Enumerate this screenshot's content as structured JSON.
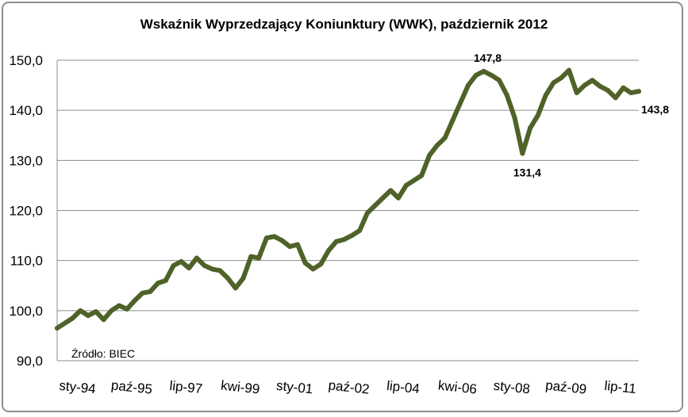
{
  "chart_data": {
    "type": "line",
    "title": "Wskaźnik Wyprzedzający Koniunktury (WWK), październik 2012",
    "xlabel": "",
    "ylabel": "",
    "ylim": [
      90,
      150
    ],
    "y_ticks": [
      "90,0",
      "100,0",
      "110,0",
      "120,0",
      "130,0",
      "140,0",
      "150,0"
    ],
    "x_start": "1994-01",
    "x_end": "2012-10",
    "x_tick_labels": [
      {
        "label": "sty-94",
        "date": "1994-01"
      },
      {
        "label": "paź-95",
        "date": "1995-10"
      },
      {
        "label": "lip-97",
        "date": "1997-07"
      },
      {
        "label": "kwi-99",
        "date": "1999-04"
      },
      {
        "label": "sty-01",
        "date": "2001-01"
      },
      {
        "label": "paź-02",
        "date": "2002-10"
      },
      {
        "label": "lip-04",
        "date": "2004-07"
      },
      {
        "label": "kwi-06",
        "date": "2006-04"
      },
      {
        "label": "sty-08",
        "date": "2008-01"
      },
      {
        "label": "paź-09",
        "date": "2009-10"
      },
      {
        "label": "lip-11",
        "date": "2011-07"
      }
    ],
    "gridlines": "horizontal",
    "legend": "none",
    "line_color": "#4f6228",
    "series": [
      {
        "points": [
          [
            "1994-01",
            96.5
          ],
          [
            "1994-04",
            97.5
          ],
          [
            "1994-07",
            98.5
          ],
          [
            "1994-10",
            100.0
          ],
          [
            "1995-01",
            99.0
          ],
          [
            "1995-04",
            99.8
          ],
          [
            "1995-07",
            98.2
          ],
          [
            "1995-10",
            100.0
          ],
          [
            "1996-01",
            101.0
          ],
          [
            "1996-04",
            100.3
          ],
          [
            "1996-07",
            102.0
          ],
          [
            "1996-10",
            103.5
          ],
          [
            "1997-01",
            103.8
          ],
          [
            "1997-04",
            105.5
          ],
          [
            "1997-07",
            106.0
          ],
          [
            "1997-10",
            109.0
          ],
          [
            "1998-01",
            109.8
          ],
          [
            "1998-04",
            108.5
          ],
          [
            "1998-07",
            110.5
          ],
          [
            "1998-10",
            109.0
          ],
          [
            "1999-01",
            108.3
          ],
          [
            "1999-04",
            108.0
          ],
          [
            "1999-07",
            106.5
          ],
          [
            "1999-10",
            104.5
          ],
          [
            "2000-01",
            106.5
          ],
          [
            "2000-04",
            110.8
          ],
          [
            "2000-07",
            110.5
          ],
          [
            "2000-10",
            114.5
          ],
          [
            "2001-01",
            114.8
          ],
          [
            "2001-04",
            114.0
          ],
          [
            "2001-07",
            112.8
          ],
          [
            "2001-10",
            113.2
          ],
          [
            "2002-01",
            109.5
          ],
          [
            "2002-04",
            108.3
          ],
          [
            "2002-07",
            109.3
          ],
          [
            "2002-10",
            112.0
          ],
          [
            "2003-01",
            113.8
          ],
          [
            "2003-04",
            114.2
          ],
          [
            "2003-07",
            115.0
          ],
          [
            "2003-10",
            116.0
          ],
          [
            "2004-01",
            119.5
          ],
          [
            "2004-04",
            121.0
          ],
          [
            "2004-07",
            122.5
          ],
          [
            "2004-10",
            124.0
          ],
          [
            "2005-01",
            122.5
          ],
          [
            "2005-04",
            125.0
          ],
          [
            "2005-07",
            126.0
          ],
          [
            "2005-10",
            127.0
          ],
          [
            "2006-01",
            131.0
          ],
          [
            "2006-04",
            133.0
          ],
          [
            "2006-07",
            134.5
          ],
          [
            "2006-10",
            138.0
          ],
          [
            "2007-01",
            141.5
          ],
          [
            "2007-04",
            145.0
          ],
          [
            "2007-07",
            147.0
          ],
          [
            "2007-10",
            147.8
          ],
          [
            "2008-01",
            147.0
          ],
          [
            "2008-04",
            146.0
          ],
          [
            "2008-07",
            143.0
          ],
          [
            "2008-10",
            138.5
          ],
          [
            "2009-01",
            131.4
          ],
          [
            "2009-04",
            136.5
          ],
          [
            "2009-07",
            139.0
          ],
          [
            "2009-10",
            143.0
          ],
          [
            "2010-01",
            145.5
          ],
          [
            "2010-04",
            146.5
          ],
          [
            "2010-07",
            148.0
          ],
          [
            "2010-10",
            143.5
          ],
          [
            "2011-01",
            145.0
          ],
          [
            "2011-04",
            146.0
          ],
          [
            "2011-07",
            144.8
          ],
          [
            "2011-10",
            144.0
          ],
          [
            "2012-01",
            142.5
          ],
          [
            "2012-04",
            144.5
          ],
          [
            "2012-07",
            143.5
          ],
          [
            "2012-10",
            143.8
          ]
        ]
      }
    ],
    "annotations": [
      {
        "text": "147,8",
        "date": "2007-10",
        "value": 147.8,
        "position": "above"
      },
      {
        "text": "131,4",
        "date": "2009-01",
        "value": 131.4,
        "position": "below"
      },
      {
        "text": "143,8",
        "date": "2012-10",
        "value": 143.8,
        "position": "right"
      }
    ],
    "source_note": "Źródło: BIEC"
  }
}
